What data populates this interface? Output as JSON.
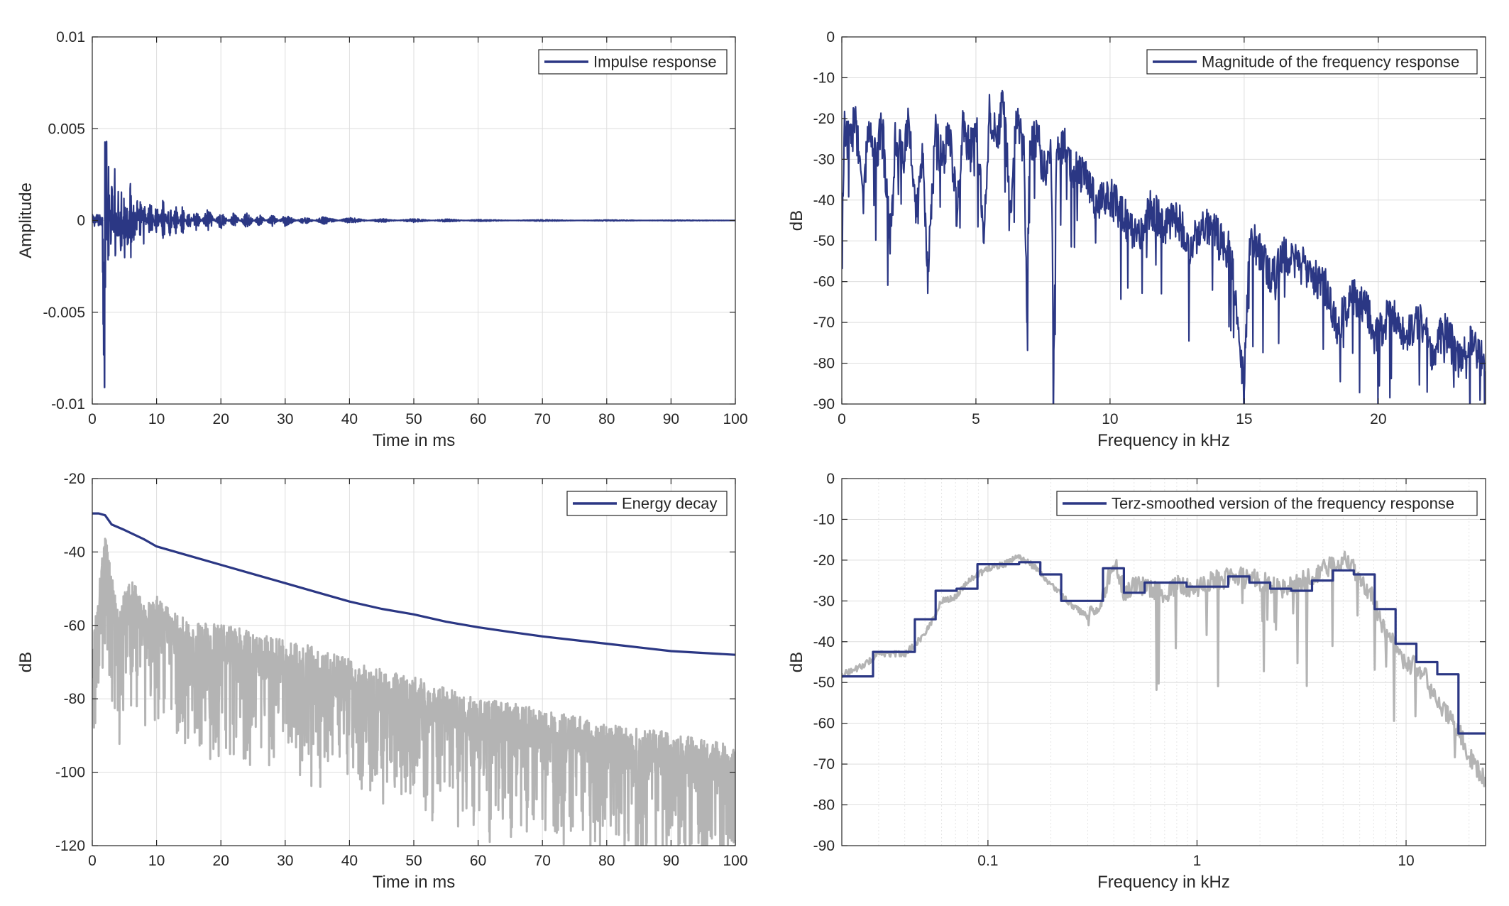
{
  "colors": {
    "primary": "#2b3784",
    "reference": "#b4b4b4",
    "grid": "#dedede",
    "minor_grid": "#e6e6e6",
    "axis": "#262626"
  },
  "chart_data": [
    {
      "type": "line",
      "xlabel": "Time in ms",
      "ylabel": "Amplitude",
      "xlim": [
        0,
        100
      ],
      "ylim": [
        -0.01,
        0.01
      ],
      "xticks": [
        0,
        10,
        20,
        30,
        40,
        50,
        60,
        70,
        80,
        90,
        100
      ],
      "yticks": [
        0.01,
        0.005,
        0,
        -0.005,
        -0.01
      ],
      "xscale": "linear",
      "grid": true,
      "legend_position": "top-right",
      "series": [
        {
          "name": "Impulse response",
          "color": "#2b3784",
          "x": [
            0,
            0.5,
            1,
            1.5,
            1.8,
            2,
            2.2,
            2.5,
            3,
            3.5,
            4,
            4.5,
            5,
            5.5,
            6,
            6.5,
            7,
            7.5,
            8,
            9,
            10,
            11,
            12,
            13,
            14,
            15,
            16,
            18,
            20,
            22,
            24,
            26,
            28,
            30,
            33,
            36,
            40,
            45,
            50,
            55,
            60,
            70,
            80,
            90,
            100
          ],
          "y": [
            0,
            0.0002,
            -0.0003,
            0.0015,
            -0.0091,
            0.0043,
            -0.004,
            0.0032,
            -0.0025,
            0.0029,
            -0.0019,
            0.0025,
            -0.0031,
            0.0022,
            -0.0028,
            0.0019,
            -0.0014,
            0.0016,
            -0.0012,
            0.0013,
            -0.0011,
            0.0012,
            -0.0009,
            0.0008,
            -0.0008,
            0.0007,
            -0.0006,
            0.0006,
            -0.0005,
            0.0004,
            -0.0004,
            0.0003,
            -0.0003,
            0.0003,
            -0.0002,
            0.0002,
            -0.00015,
            0.0001,
            -0.0001,
            8e-05,
            -5e-05,
            4e-05,
            -3e-05,
            2e-05,
            0
          ]
        }
      ]
    },
    {
      "type": "line",
      "xlabel": "Frequency in kHz",
      "ylabel": "dB",
      "xlim": [
        0,
        24
      ],
      "ylim": [
        -90,
        0
      ],
      "xticks": [
        0,
        5,
        10,
        15,
        20
      ],
      "yticks": [
        0,
        -10,
        -20,
        -30,
        -40,
        -50,
        -60,
        -70,
        -80,
        -90
      ],
      "xscale": "linear",
      "grid": true,
      "legend_position": "top-right",
      "series": [
        {
          "name": "Magnitude of the frequency response",
          "color": "#2b3784",
          "x": [
            0,
            0.1,
            0.3,
            0.5,
            0.8,
            1,
            1.3,
            1.5,
            1.8,
            2,
            2.3,
            2.5,
            2.8,
            3,
            3.2,
            3.5,
            3.8,
            4,
            4.3,
            4.5,
            4.8,
            5,
            5.3,
            5.5,
            5.8,
            6,
            6.3,
            6.5,
            6.8,
            6.9,
            7,
            7.3,
            7.5,
            7.8,
            7.9,
            8,
            8.3,
            8.5,
            9,
            9.5,
            10,
            10.5,
            11,
            11.5,
            12,
            12.5,
            13,
            13.5,
            14,
            14.5,
            15,
            15.2,
            15.5,
            16,
            16.5,
            17,
            17.5,
            18,
            18.5,
            19,
            19.5,
            20,
            20.5,
            21,
            21.5,
            22,
            22.5,
            23,
            23.5,
            24
          ],
          "y": [
            -56,
            -22,
            -27,
            -21,
            -40,
            -24,
            -30,
            -22,
            -50,
            -25,
            -31,
            -22,
            -45,
            -28,
            -60,
            -24,
            -32,
            -22,
            -45,
            -23,
            -29,
            -21,
            -50,
            -20,
            -26,
            -17,
            -42,
            -21,
            -30,
            -70,
            -28,
            -25,
            -35,
            -28,
            -82,
            -31,
            -27,
            -33,
            -35,
            -42,
            -40,
            -45,
            -50,
            -43,
            -47,
            -45,
            -53,
            -47,
            -50,
            -54,
            -87,
            -50,
            -53,
            -60,
            -55,
            -56,
            -60,
            -62,
            -72,
            -65,
            -67,
            -74,
            -68,
            -75,
            -70,
            -78,
            -73,
            -80,
            -75,
            -82
          ]
        }
      ]
    },
    {
      "type": "line",
      "xlabel": "Time in ms",
      "ylabel": "dB",
      "xlim": [
        0,
        100
      ],
      "ylim": [
        -120,
        -20
      ],
      "xticks": [
        0,
        10,
        20,
        30,
        40,
        50,
        60,
        70,
        80,
        90,
        100
      ],
      "yticks": [
        -20,
        -40,
        -60,
        -80,
        -100,
        -120
      ],
      "xscale": "linear",
      "grid": true,
      "legend_position": "top-right",
      "series": [
        {
          "name": "Energy decay",
          "color": "#2b3784",
          "x": [
            0,
            1,
            2,
            3,
            5,
            8,
            10,
            15,
            20,
            25,
            30,
            35,
            40,
            45,
            50,
            55,
            60,
            65,
            70,
            75,
            80,
            85,
            90,
            95,
            100
          ],
          "y": [
            -29.5,
            -29.5,
            -30,
            -32.5,
            -34,
            -36.5,
            -38.5,
            -41,
            -43.5,
            -46,
            -48.5,
            -51,
            -53.5,
            -55.5,
            -57,
            -59,
            -60.5,
            -61.8,
            -63,
            -64,
            -65,
            -66,
            -67,
            -67.5,
            -68
          ]
        },
        {
          "color": "#b4b4b4",
          "x": [
            0,
            2,
            4,
            6,
            8,
            10,
            15,
            20,
            25,
            30,
            35,
            40,
            45,
            50,
            55,
            60,
            65,
            70,
            75,
            80,
            85,
            90,
            95,
            100
          ],
          "y": [
            -70,
            -41,
            -62,
            -52,
            -60,
            -58,
            -65,
            -65,
            -68,
            -70,
            -72,
            -75,
            -78,
            -80,
            -83,
            -86,
            -87,
            -89,
            -90,
            -93,
            -94,
            -95,
            -97,
            -98
          ]
        }
      ]
    },
    {
      "type": "line",
      "xlabel": "Frequency in kHz",
      "ylabel": "dB",
      "xlim": [
        0.02,
        24
      ],
      "ylim": [
        -90,
        0
      ],
      "xticks": [
        0.1,
        1,
        10
      ],
      "xtick_labels": [
        "0.1",
        "1",
        "10"
      ],
      "yticks": [
        0,
        -10,
        -20,
        -30,
        -40,
        -50,
        -60,
        -70,
        -80,
        -90
      ],
      "xscale": "log",
      "grid": true,
      "legend_position": "top-right",
      "series": [
        {
          "name": "Terz-smoothed version of the frequency response",
          "color": "#2b3784",
          "x": [
            0.02,
            0.0282,
            0.0282,
            0.0447,
            0.0447,
            0.0562,
            0.0562,
            0.0708,
            0.0708,
            0.0891,
            0.0891,
            0.141,
            0.141,
            0.178,
            0.178,
            0.224,
            0.224,
            0.355,
            0.355,
            0.447,
            0.447,
            0.562,
            0.562,
            0.891,
            0.891,
            1.41,
            1.41,
            1.78,
            1.78,
            2.24,
            2.24,
            2.82,
            2.82,
            3.55,
            3.55,
            4.47,
            4.47,
            5.62,
            5.62,
            7.08,
            7.08,
            8.91,
            8.91,
            11.2,
            11.2,
            14.1,
            14.1,
            17.8,
            17.8,
            24
          ],
          "y": [
            -48.5,
            -48.5,
            -42.5,
            -42.5,
            -34.5,
            -34.5,
            -27.5,
            -27.5,
            -27,
            -27,
            -21,
            -21,
            -20.5,
            -20.5,
            -23.5,
            -23.5,
            -30,
            -30,
            -22,
            -22,
            -28,
            -28,
            -25.5,
            -25.5,
            -26.5,
            -26.5,
            -24,
            -24,
            -25.5,
            -25.5,
            -27,
            -27,
            -27.5,
            -27.5,
            -25,
            -25,
            -22.5,
            -22.5,
            -23.5,
            -23.5,
            -32,
            -32,
            -40.5,
            -40.5,
            -45,
            -45,
            -48,
            -48,
            -62.5,
            -62.5
          ]
        },
        {
          "color": "#b4b4b4",
          "x": [
            0.02,
            0.025,
            0.03,
            0.04,
            0.05,
            0.06,
            0.07,
            0.08,
            0.1,
            0.12,
            0.14,
            0.17,
            0.2,
            0.25,
            0.3,
            0.35,
            0.4,
            0.45,
            0.5,
            0.6,
            0.7,
            0.8,
            1,
            1.2,
            1.5,
            2,
            2.5,
            3,
            3.5,
            4,
            5,
            6,
            7,
            8,
            9,
            10,
            12,
            14,
            16,
            18,
            20,
            24
          ],
          "y": [
            -48,
            -46,
            -43,
            -43,
            -38,
            -30,
            -29,
            -25,
            -22,
            -21,
            -19,
            -22,
            -26,
            -31,
            -34,
            -30,
            -20,
            -28,
            -26,
            -27,
            -29,
            -26,
            -27,
            -25,
            -24,
            -25,
            -27,
            -26,
            -24,
            -22,
            -20,
            -24,
            -30,
            -38,
            -42,
            -45,
            -47,
            -55,
            -58,
            -62,
            -68,
            -74
          ]
        }
      ]
    }
  ]
}
